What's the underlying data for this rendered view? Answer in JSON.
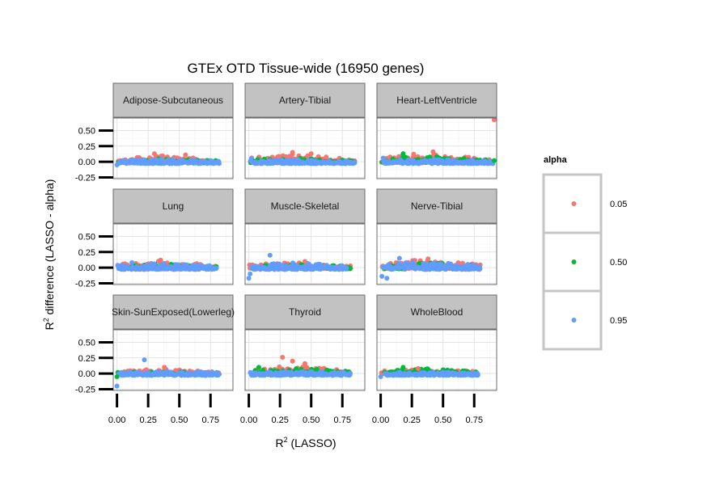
{
  "chart_data": {
    "type": "scatter",
    "title": "GTEx OTD Tissue-wide (16950 genes)",
    "xlabel": {
      "base": "R",
      "sup": "2",
      "rest": " (LASSO)"
    },
    "ylabel": {
      "base": "R",
      "sup": "2",
      "rest": " difference (LASSO - alpha)"
    },
    "xlim": [
      -0.03,
      0.93
    ],
    "ylim": [
      -0.27,
      0.7
    ],
    "x_ticks": [
      0,
      0.25,
      0.5,
      0.75
    ],
    "x_tick_labels": [
      "0.00",
      "0.25",
      "0.50",
      "0.75"
    ],
    "y_ticks": [
      -0.25,
      0,
      0.25,
      0.5
    ],
    "y_tick_labels": [
      "-0.25",
      "0.00",
      "0.25",
      "0.50"
    ],
    "grid": true,
    "legend": {
      "title": "alpha",
      "placement": "right",
      "entries": [
        {
          "label": "0.05",
          "color": "#F8766D"
        },
        {
          "label": "0.50",
          "color": "#00BA38"
        },
        {
          "label": "0.95",
          "color": "#619CFF"
        }
      ]
    },
    "panels": [
      {
        "name": "Adipose-Subcutaneous",
        "xmax": 0.82,
        "red_top": 0.1,
        "green_top": 0.05,
        "blue_top": 0.05,
        "outliers": [
          {
            "series": "0.05",
            "x": 0.3,
            "y": 0.13
          },
          {
            "series": "0.05",
            "x": 0.55,
            "y": 0.11
          },
          {
            "series": "0.95",
            "x": 0.0,
            "y": -0.05
          }
        ]
      },
      {
        "name": "Artery-Tibial",
        "xmax": 0.85,
        "red_top": 0.12,
        "green_top": 0.07,
        "blue_top": 0.04,
        "outliers": [
          {
            "series": "0.05",
            "x": 0.35,
            "y": 0.15
          },
          {
            "series": "0.05",
            "x": 0.5,
            "y": 0.13
          },
          {
            "series": "0.95",
            "x": 0.02,
            "y": 0.05
          }
        ]
      },
      {
        "name": "Heart-LeftVentricle",
        "xmax": 0.9,
        "red_top": 0.14,
        "green_top": 0.1,
        "blue_top": 0.05,
        "outliers": [
          {
            "series": "0.05",
            "x": 0.91,
            "y": 0.67
          },
          {
            "series": "0.50",
            "x": 0.91,
            "y": 0.02
          },
          {
            "series": "0.50",
            "x": 0.18,
            "y": 0.13
          },
          {
            "series": "0.05",
            "x": 0.42,
            "y": 0.16
          },
          {
            "series": "0.95",
            "x": 0.02,
            "y": 0.06
          }
        ]
      },
      {
        "name": "Lung",
        "xmax": 0.8,
        "red_top": 0.11,
        "green_top": 0.06,
        "blue_top": 0.07,
        "outliers": [
          {
            "series": "0.05",
            "x": 0.35,
            "y": 0.12
          },
          {
            "series": "0.95",
            "x": 0.12,
            "y": 0.08
          }
        ]
      },
      {
        "name": "Muscle-Skeletal",
        "xmax": 0.82,
        "red_top": 0.09,
        "green_top": 0.06,
        "blue_top": 0.08,
        "outliers": [
          {
            "series": "0.95",
            "x": 0.17,
            "y": 0.2
          },
          {
            "series": "0.95",
            "x": 0.0,
            "y": -0.17
          },
          {
            "series": "0.95",
            "x": 0.01,
            "y": -0.1
          },
          {
            "series": "0.05",
            "x": 0.45,
            "y": 0.1
          }
        ]
      },
      {
        "name": "Nerve-Tibial",
        "xmax": 0.8,
        "red_top": 0.13,
        "green_top": 0.09,
        "blue_top": 0.1,
        "outliers": [
          {
            "series": "0.95",
            "x": 0.15,
            "y": 0.15
          },
          {
            "series": "0.95",
            "x": 0.01,
            "y": -0.14
          },
          {
            "series": "0.95",
            "x": 0.05,
            "y": -0.17
          },
          {
            "series": "0.05",
            "x": 0.38,
            "y": 0.14
          }
        ]
      },
      {
        "name": "Skin-SunExposed(Lowerleg)",
        "xmax": 0.82,
        "red_top": 0.08,
        "green_top": 0.04,
        "blue_top": 0.04,
        "outliers": [
          {
            "series": "0.95",
            "x": 0.22,
            "y": 0.22
          },
          {
            "series": "0.05",
            "x": 0.38,
            "y": 0.1
          },
          {
            "series": "0.95",
            "x": 0.0,
            "y": -0.2
          },
          {
            "series": "0.50",
            "x": 0.0,
            "y": -0.05
          }
        ]
      },
      {
        "name": "Thyroid",
        "xmax": 0.82,
        "red_top": 0.13,
        "green_top": 0.1,
        "blue_top": 0.04,
        "outliers": [
          {
            "series": "0.05",
            "x": 0.27,
            "y": 0.26
          },
          {
            "series": "0.05",
            "x": 0.35,
            "y": 0.2
          },
          {
            "series": "0.50",
            "x": 0.08,
            "y": 0.1
          },
          {
            "series": "0.05",
            "x": 0.45,
            "y": 0.16
          }
        ]
      },
      {
        "name": "WholeBlood",
        "xmax": 0.78,
        "red_top": 0.08,
        "green_top": 0.08,
        "blue_top": 0.03,
        "outliers": [
          {
            "series": "0.50",
            "x": 0.18,
            "y": 0.1
          },
          {
            "series": "0.05",
            "x": 0.3,
            "y": 0.08
          },
          {
            "series": "0.95",
            "x": 0.0,
            "y": -0.05
          }
        ]
      }
    ]
  }
}
